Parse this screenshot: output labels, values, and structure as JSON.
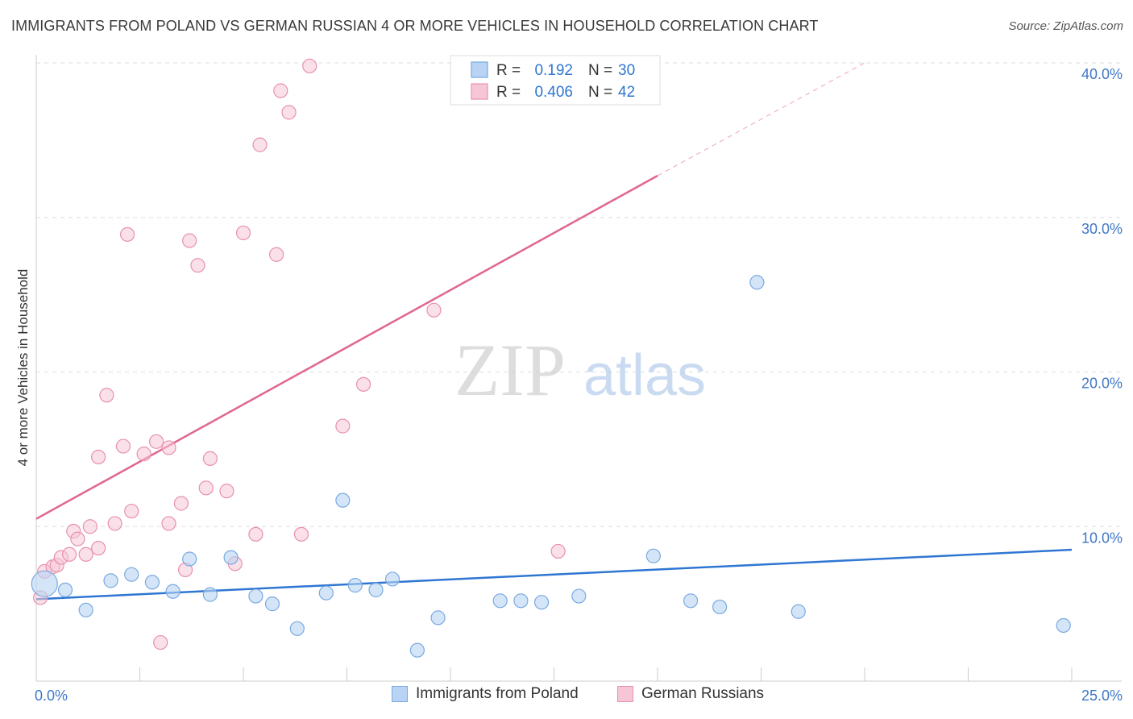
{
  "title": "IMMIGRANTS FROM POLAND VS GERMAN RUSSIAN 4 OR MORE VEHICLES IN HOUSEHOLD CORRELATION CHART",
  "source": "Source: ZipAtlas.com",
  "watermark": {
    "zip": "ZIP",
    "atlas": "atlas"
  },
  "colors": {
    "blue_fill": "#b8d3f3",
    "blue_stroke": "#7aaae0",
    "blue_line": "#2f76d2",
    "pink_fill": "#f6c6d6",
    "pink_stroke": "#e891b0",
    "pink_line": "#e0668f",
    "axis_text": "#3f78c8",
    "grid": "#dddddd"
  },
  "legend": {
    "r_label": "R =",
    "n_label": "N =",
    "rows": [
      {
        "series": "Immigrants from Poland",
        "r": "0.192",
        "n": "30"
      },
      {
        "series": "German Russians",
        "r": "0.406",
        "n": "42"
      }
    ]
  },
  "bottom_legend": [
    "Immigrants from Poland",
    "German Russians"
  ],
  "chart_data": {
    "type": "scatter",
    "xlabel": "",
    "ylabel": "4 or more Vehicles in Household",
    "xlim": [
      0,
      25
    ],
    "ylim": [
      0,
      40
    ],
    "x_tick_labels": [
      "0.0%",
      "25.0%"
    ],
    "y_ticks": [
      10,
      20,
      30,
      40
    ],
    "y_tick_labels": [
      "10.0%",
      "20.0%",
      "30.0%",
      "40.0%"
    ],
    "series": [
      {
        "name": "Immigrants from Poland",
        "points": [
          [
            0.2,
            6.3
          ],
          [
            0.7,
            5.9
          ],
          [
            1.2,
            4.6
          ],
          [
            1.8,
            6.5
          ],
          [
            2.3,
            6.9
          ],
          [
            2.8,
            6.4
          ],
          [
            3.3,
            5.8
          ],
          [
            3.7,
            7.9
          ],
          [
            4.2,
            5.6
          ],
          [
            4.7,
            8.0
          ],
          [
            5.3,
            5.5
          ],
          [
            5.7,
            5.0
          ],
          [
            6.3,
            3.4
          ],
          [
            7.0,
            5.7
          ],
          [
            7.4,
            11.7
          ],
          [
            7.7,
            6.2
          ],
          [
            8.2,
            5.9
          ],
          [
            8.6,
            6.6
          ],
          [
            9.2,
            2.0
          ],
          [
            9.7,
            4.1
          ],
          [
            11.2,
            5.2
          ],
          [
            11.7,
            5.2
          ],
          [
            12.2,
            5.1
          ],
          [
            13.1,
            5.5
          ],
          [
            14.9,
            8.1
          ],
          [
            15.8,
            5.2
          ],
          [
            16.5,
            4.8
          ],
          [
            17.4,
            25.8
          ],
          [
            18.4,
            4.5
          ],
          [
            24.8,
            3.6
          ]
        ],
        "trend": {
          "x": [
            0,
            25
          ],
          "y": [
            5.3,
            8.5
          ]
        }
      },
      {
        "name": "German Russians",
        "points": [
          [
            0.1,
            5.4
          ],
          [
            0.2,
            7.1
          ],
          [
            0.4,
            7.4
          ],
          [
            0.5,
            7.5
          ],
          [
            0.6,
            8.0
          ],
          [
            0.8,
            8.2
          ],
          [
            0.9,
            9.7
          ],
          [
            1.0,
            9.2
          ],
          [
            1.2,
            8.2
          ],
          [
            1.3,
            10.0
          ],
          [
            1.5,
            8.6
          ],
          [
            1.5,
            14.5
          ],
          [
            1.7,
            18.5
          ],
          [
            1.9,
            10.2
          ],
          [
            2.1,
            15.2
          ],
          [
            2.2,
            28.9
          ],
          [
            2.3,
            11.0
          ],
          [
            2.6,
            14.7
          ],
          [
            2.9,
            15.5
          ],
          [
            3.0,
            2.5
          ],
          [
            3.2,
            10.2
          ],
          [
            3.2,
            15.1
          ],
          [
            3.5,
            11.5
          ],
          [
            3.6,
            7.2
          ],
          [
            3.7,
            28.5
          ],
          [
            3.9,
            26.9
          ],
          [
            4.1,
            12.5
          ],
          [
            4.2,
            14.4
          ],
          [
            4.6,
            12.3
          ],
          [
            4.8,
            7.6
          ],
          [
            5.0,
            29.0
          ],
          [
            5.3,
            9.5
          ],
          [
            5.4,
            34.7
          ],
          [
            5.8,
            27.6
          ],
          [
            5.9,
            38.2
          ],
          [
            6.1,
            36.8
          ],
          [
            6.4,
            9.5
          ],
          [
            6.6,
            39.8
          ],
          [
            7.4,
            16.5
          ],
          [
            7.9,
            19.2
          ],
          [
            9.6,
            24.0
          ],
          [
            12.6,
            8.4
          ]
        ],
        "trend": {
          "x": [
            0,
            15
          ],
          "y": [
            10.5,
            32.7
          ]
        },
        "trend_extension": {
          "x": [
            15,
            20
          ],
          "y": [
            32.7,
            40.0
          ]
        }
      }
    ]
  }
}
